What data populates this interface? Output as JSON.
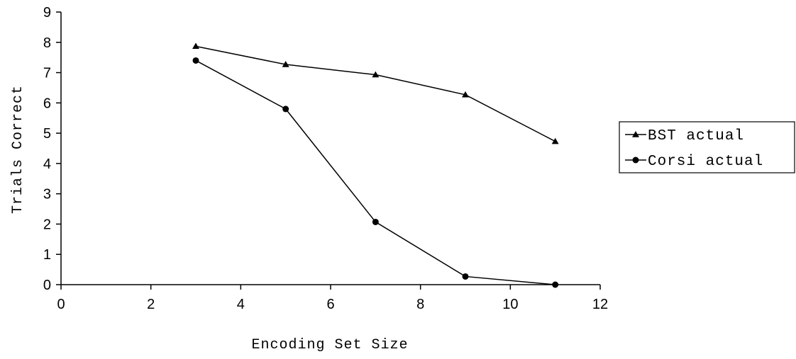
{
  "chart_data": {
    "type": "line",
    "xlabel": "Encoding Set Size",
    "ylabel": "Trials Correct",
    "xlim": [
      0,
      12
    ],
    "ylim": [
      0,
      9
    ],
    "xticks": [
      0,
      2,
      4,
      6,
      8,
      10,
      12
    ],
    "yticks": [
      0,
      1,
      2,
      3,
      4,
      5,
      6,
      7,
      8,
      9
    ],
    "grid": false,
    "legend_position": "right",
    "series": [
      {
        "name": "BST actual",
        "marker": "triangle",
        "color": "#000000",
        "x": [
          3,
          5,
          7,
          9,
          11
        ],
        "y": [
          7.87,
          7.27,
          6.93,
          6.27,
          4.73
        ]
      },
      {
        "name": "Corsi actual",
        "marker": "circle",
        "color": "#000000",
        "x": [
          3,
          5,
          7,
          9,
          11
        ],
        "y": [
          7.4,
          5.8,
          2.07,
          0.27,
          0
        ]
      }
    ]
  }
}
